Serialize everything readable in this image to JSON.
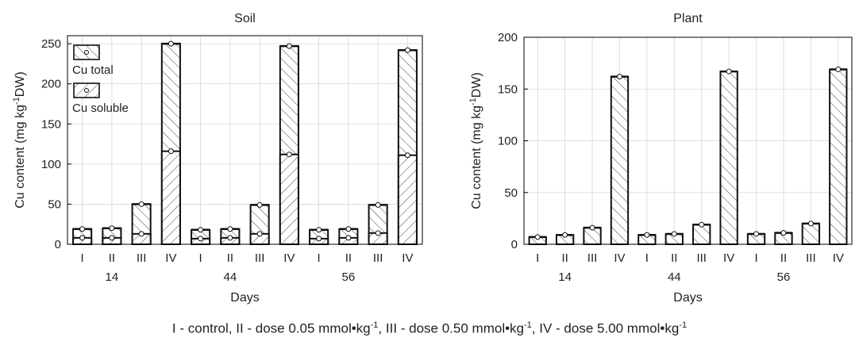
{
  "caption": {
    "parts": [
      {
        "text": "I - control, II - dose 0.05 mmol•kg"
      },
      {
        "sup": "-1"
      },
      {
        "text": ", III - dose 0.50 mmol•kg"
      },
      {
        "sup": "-1"
      },
      {
        "text": ", IV - dose 5.00 mmol•kg"
      },
      {
        "sup": "-1"
      }
    ]
  },
  "chart_data": [
    {
      "type": "bar",
      "title": "Soil",
      "xlabel": "Days",
      "ylabel_main": "Cu content (mg  kg",
      "ylabel_sup": "-1",
      "ylabel_end": "DW)",
      "ylim": [
        0,
        260
      ],
      "yticks": [
        0,
        50,
        100,
        150,
        200,
        250
      ],
      "groups": [
        "14",
        "44",
        "56"
      ],
      "categories": [
        "I",
        "II",
        "III",
        "IV"
      ],
      "series": [
        {
          "name": "Cu total",
          "values": [
            [
              19,
              20,
              50,
              250
            ],
            [
              18,
              19,
              49,
              247
            ],
            [
              18,
              19,
              49,
              242
            ]
          ]
        },
        {
          "name": "Cu soluble",
          "values": [
            [
              8,
              8,
              13,
              116
            ],
            [
              7,
              8,
              13,
              112
            ],
            [
              7,
              8,
              14,
              111
            ]
          ]
        }
      ],
      "legend": [
        "Cu total",
        "Cu soluble"
      ],
      "legend_position": "top-left",
      "grid": true
    },
    {
      "type": "bar",
      "title": "Plant",
      "xlabel": "Days",
      "ylabel_main": "Cu content (mg  kg",
      "ylabel_sup": "-1",
      "ylabel_end": "DW)",
      "ylim": [
        0,
        200
      ],
      "yticks": [
        0,
        50,
        100,
        150,
        200
      ],
      "groups": [
        "14",
        "44",
        "56"
      ],
      "categories": [
        "I",
        "II",
        "III",
        "IV"
      ],
      "series": [
        {
          "name": "Cu total",
          "values": [
            [
              7,
              9,
              16,
              162
            ],
            [
              9,
              10,
              19,
              167
            ],
            [
              10,
              11,
              20,
              169
            ]
          ]
        }
      ],
      "grid": true
    }
  ]
}
